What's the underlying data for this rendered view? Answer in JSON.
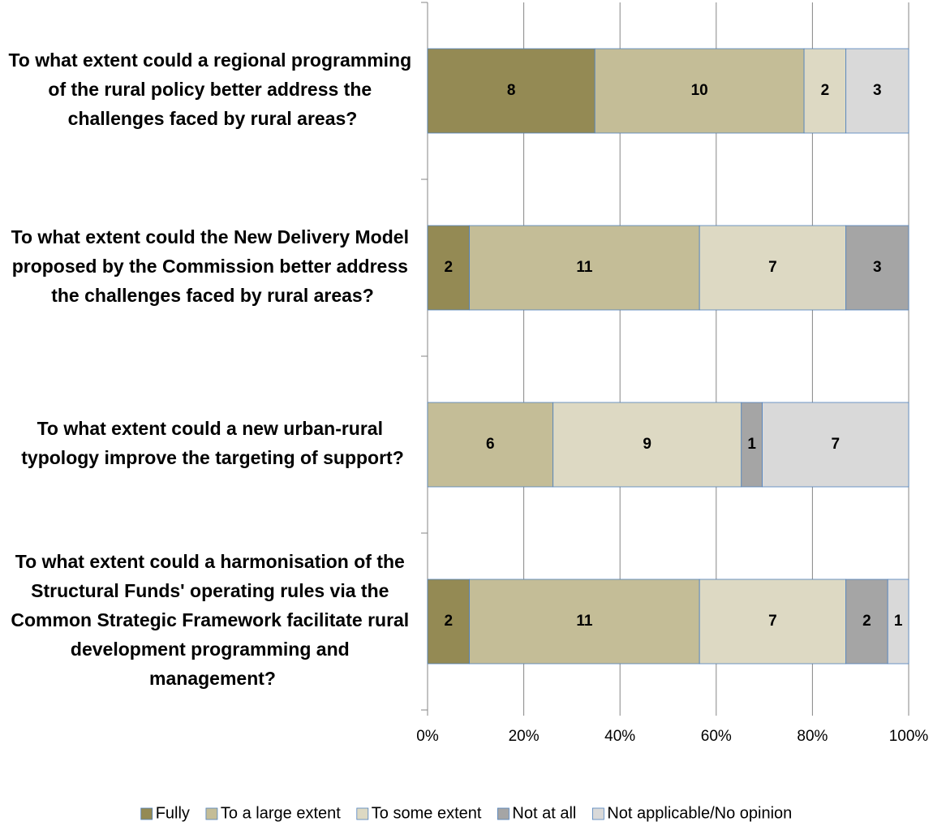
{
  "chart_data": {
    "type": "bar",
    "orientation": "horizontal",
    "stacking": "percent",
    "categories": [
      "To what extent could a regional programming of the rural policy better address the challenges faced by rural areas?",
      "To what extent could the New Delivery Model proposed by the Commission better address the challenges faced by rural areas?",
      "To what extent could a new urban-rural typology improve the targeting of support?",
      "To what extent could a harmonisation of the Structural Funds' operating rules via the Common Strategic Framework facilitate rural development programming and management?"
    ],
    "series": [
      {
        "name": "Fully",
        "color": "#948a54",
        "values": [
          8,
          2,
          0,
          2
        ]
      },
      {
        "name": "To a large extent",
        "color": "#c4bd97",
        "values": [
          10,
          11,
          6,
          11
        ]
      },
      {
        "name": "To some extent",
        "color": "#ddd9c3",
        "values": [
          2,
          7,
          9,
          7
        ]
      },
      {
        "name": "Not at all",
        "color": "#a5a5a5",
        "values": [
          0,
          3,
          1,
          2
        ]
      },
      {
        "name": "Not applicable/No opinion",
        "color": "#d9d9d9",
        "values": [
          3,
          0,
          7,
          1
        ]
      }
    ],
    "xlim": [
      0,
      100
    ],
    "xticks": [
      {
        "value": 0,
        "label": "0%"
      },
      {
        "value": 20,
        "label": "20%"
      },
      {
        "value": 40,
        "label": "40%"
      },
      {
        "value": 60,
        "label": "60%"
      },
      {
        "value": 80,
        "label": "80%"
      },
      {
        "value": 100,
        "label": "100%"
      }
    ],
    "grid": true,
    "legend": "bottom"
  }
}
